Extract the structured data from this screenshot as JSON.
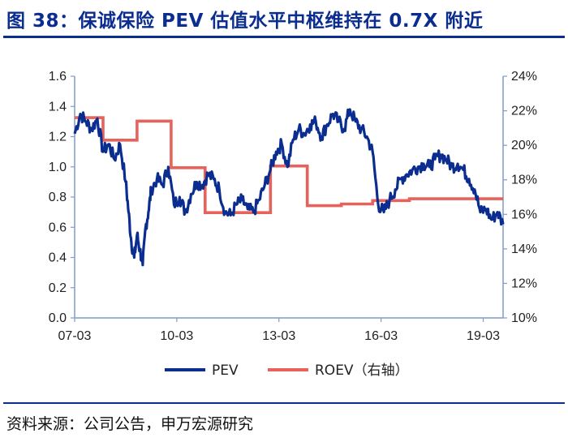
{
  "header": {
    "title": "图 38：保诚保险 PEV 估值水平中枢维持在 0.7X 附近"
  },
  "footer": {
    "source": "资料来源：公司公告，申万宏源研究"
  },
  "colors": {
    "title": "#0a2d8f",
    "pev": "#0a2d8f",
    "roev": "#e8625c",
    "axis": "#7f9bc7"
  },
  "chart_data": {
    "type": "line",
    "title": "保诚保险 PEV 估值水平中枢维持在 0.7X 附近",
    "x_ticks": [
      "07-03",
      "10-03",
      "13-03",
      "16-03",
      "19-03"
    ],
    "x_range": [
      "2007-03",
      "2019-10"
    ],
    "y_left": {
      "range": [
        0.0,
        1.6
      ],
      "ticks": [
        "0.0",
        "0.2",
        "0.4",
        "0.6",
        "0.8",
        "1.0",
        "1.2",
        "1.4",
        "1.6"
      ]
    },
    "y_right": {
      "range": [
        10,
        24
      ],
      "ticks": [
        "10%",
        "12%",
        "14%",
        "16%",
        "18%",
        "20%",
        "22%",
        "24%"
      ]
    },
    "legend": {
      "position": "bottom"
    },
    "series": [
      {
        "name": "PEV",
        "axis": "left",
        "x": [
          "2007-03",
          "2007-05",
          "2007-07",
          "2007-09",
          "2007-11",
          "2008-01",
          "2008-03",
          "2008-05",
          "2008-07",
          "2008-09",
          "2008-10",
          "2008-11",
          "2008-12",
          "2009-01",
          "2009-02",
          "2009-03",
          "2009-04",
          "2009-05",
          "2009-06",
          "2009-08",
          "2009-10",
          "2009-12",
          "2010-02",
          "2010-04",
          "2010-06",
          "2010-08",
          "2010-10",
          "2010-12",
          "2011-02",
          "2011-04",
          "2011-06",
          "2011-08",
          "2011-10",
          "2011-12",
          "2012-02",
          "2012-04",
          "2012-06",
          "2012-08",
          "2012-10",
          "2012-12",
          "2013-02",
          "2013-04",
          "2013-06",
          "2013-08",
          "2013-10",
          "2013-12",
          "2014-02",
          "2014-04",
          "2014-06",
          "2014-08",
          "2014-10",
          "2014-12",
          "2015-02",
          "2015-04",
          "2015-06",
          "2015-08",
          "2015-10",
          "2015-12",
          "2016-02",
          "2016-04",
          "2016-06",
          "2016-08",
          "2016-10",
          "2016-12",
          "2017-02",
          "2017-04",
          "2017-06",
          "2017-08",
          "2017-10",
          "2017-12",
          "2018-02",
          "2018-04",
          "2018-06",
          "2018-08",
          "2018-10",
          "2018-12",
          "2019-02",
          "2019-04",
          "2019-06",
          "2019-08",
          "2019-10"
        ],
        "values": [
          1.22,
          1.35,
          1.3,
          1.25,
          1.32,
          1.1,
          1.15,
          1.05,
          1.15,
          0.9,
          0.7,
          0.5,
          0.4,
          0.55,
          0.45,
          0.35,
          0.6,
          0.7,
          0.85,
          0.92,
          0.88,
          1.0,
          0.75,
          0.8,
          0.7,
          0.82,
          0.9,
          0.88,
          0.95,
          0.92,
          0.85,
          0.7,
          0.68,
          0.75,
          0.78,
          0.72,
          0.7,
          0.78,
          0.88,
          0.98,
          1.1,
          1.15,
          1.0,
          1.18,
          1.25,
          1.22,
          1.28,
          1.3,
          1.2,
          1.28,
          1.35,
          1.3,
          1.25,
          1.38,
          1.3,
          1.25,
          1.2,
          1.1,
          0.75,
          0.7,
          0.78,
          0.85,
          0.92,
          0.95,
          0.98,
          1.0,
          1.02,
          1.0,
          1.05,
          1.08,
          1.05,
          1.0,
          1.02,
          0.98,
          0.92,
          0.85,
          0.7,
          0.72,
          0.65,
          0.7,
          0.62
        ]
      },
      {
        "name": "ROEV（右轴）",
        "axis": "right",
        "step": true,
        "x": [
          "2007-03",
          "2008-01",
          "2008-01",
          "2009-01",
          "2009-01",
          "2010-01",
          "2010-01",
          "2011-01",
          "2011-01",
          "2012-12",
          "2012-12",
          "2014-01",
          "2014-01",
          "2015-01",
          "2015-01",
          "2015-12",
          "2015-12",
          "2017-01",
          "2017-01",
          "2019-10"
        ],
        "values": [
          21.6,
          21.6,
          20.3,
          20.3,
          21.4,
          21.4,
          18.7,
          18.7,
          16.1,
          16.1,
          18.8,
          18.8,
          16.5,
          16.5,
          16.6,
          16.6,
          16.8,
          16.8,
          16.9,
          16.9
        ]
      }
    ]
  }
}
